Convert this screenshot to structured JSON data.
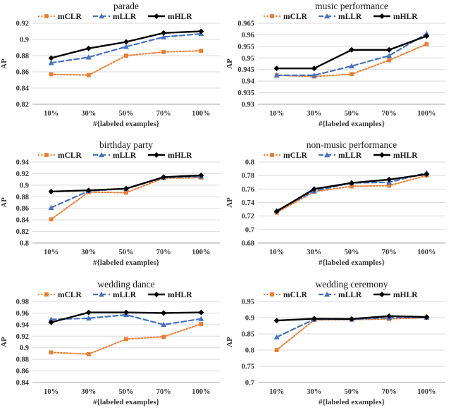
{
  "figure": {
    "x_axis_label": "#{labeled examples}",
    "y_axis_label": "AP",
    "categories": [
      "10%",
      "30%",
      "50%",
      "70%",
      "100%"
    ],
    "legend_labels": [
      "mCLR",
      "mLLR",
      "mHLR"
    ]
  },
  "style": {
    "background": "#ffffff",
    "grid_color": "#d9d9d9",
    "axis_color": "#a6a6a6",
    "tick_text_color": "#333333",
    "title_color": "#1a1a1a"
  },
  "series_styles": {
    "mCLR": {
      "color": "#ED7D31",
      "dash": "2 2.4",
      "width": 2,
      "marker": "square",
      "marker_size": 7
    },
    "mLLR": {
      "color": "#4472C4",
      "dash": "7 4",
      "width": 2.2,
      "marker": "triangle",
      "marker_size": 8
    },
    "mHLR": {
      "color": "#000000",
      "dash": "",
      "width": 2.4,
      "marker": "diamond",
      "marker_size": 8
    }
  },
  "chart_data": [
    {
      "type": "line",
      "title": "parade",
      "xlabel": "#{labeled examples}",
      "ylabel": "AP",
      "categories": [
        "10%",
        "30%",
        "50%",
        "70%",
        "100%"
      ],
      "ylim": [
        0.82,
        0.92
      ],
      "ytick_labels": [
        "0.82",
        "0.84",
        "0.86",
        "0.88",
        "0.9",
        "0.92"
      ],
      "legend_position": "top",
      "grid": true,
      "series": [
        {
          "name": "mCLR",
          "values": [
            0.857,
            0.856,
            0.88,
            0.8845,
            0.886
          ]
        },
        {
          "name": "mLLR",
          "values": [
            0.871,
            0.878,
            0.891,
            0.903,
            0.907
          ]
        },
        {
          "name": "mHLR",
          "values": [
            0.877,
            0.889,
            0.897,
            0.908,
            0.91
          ]
        }
      ]
    },
    {
      "type": "line",
      "title": "music performance",
      "xlabel": "#{labeled examples}",
      "ylabel": "AP",
      "categories": [
        "10%",
        "30%",
        "50%",
        "70%",
        "100%"
      ],
      "ylim": [
        0.93,
        0.965
      ],
      "ytick_labels": [
        "0.93",
        "0.935",
        "0.94",
        "0.945",
        "0.95",
        "0.955",
        "0.96",
        "0.965"
      ],
      "legend_position": "top",
      "grid": true,
      "series": [
        {
          "name": "mCLR",
          "values": [
            0.9425,
            0.942,
            0.943,
            0.949,
            0.956
          ]
        },
        {
          "name": "mLLR",
          "values": [
            0.9425,
            0.9425,
            0.9465,
            0.951,
            0.9605
          ]
        },
        {
          "name": "mHLR",
          "values": [
            0.9455,
            0.9455,
            0.9535,
            0.9535,
            0.9595
          ]
        }
      ]
    },
    {
      "type": "line",
      "title": "birthday party",
      "xlabel": "#{labeled examples}",
      "ylabel": "AP",
      "categories": [
        "10%",
        "30%",
        "50%",
        "70%",
        "100%"
      ],
      "ylim": [
        0.8,
        0.94
      ],
      "ytick_labels": [
        "0.8",
        "0.82",
        "0.84",
        "0.86",
        "0.88",
        "0.9",
        "0.92",
        "0.94"
      ],
      "legend_position": "top",
      "grid": true,
      "series": [
        {
          "name": "mCLR",
          "values": [
            0.841,
            0.888,
            0.887,
            0.912,
            0.913
          ]
        },
        {
          "name": "mLLR",
          "values": [
            0.861,
            0.89,
            0.894,
            0.913,
            0.915
          ]
        },
        {
          "name": "mHLR",
          "values": [
            0.889,
            0.891,
            0.894,
            0.914,
            0.917
          ]
        }
      ]
    },
    {
      "type": "line",
      "title": "non-music performance",
      "xlabel": "#{labeled examples}",
      "ylabel": "AP",
      "categories": [
        "10%",
        "30%",
        "50%",
        "70%",
        "100%"
      ],
      "ylim": [
        0.68,
        0.8
      ],
      "ytick_labels": [
        "0.68",
        "0.7",
        "0.72",
        "0.74",
        "0.76",
        "0.78",
        "0.8"
      ],
      "legend_position": "top",
      "grid": true,
      "series": [
        {
          "name": "mCLR",
          "values": [
            0.725,
            0.756,
            0.764,
            0.765,
            0.78
          ]
        },
        {
          "name": "mLLR",
          "values": [
            0.728,
            0.757,
            0.769,
            0.77,
            0.784
          ]
        },
        {
          "name": "mHLR",
          "values": [
            0.727,
            0.76,
            0.769,
            0.774,
            0.782
          ]
        }
      ]
    },
    {
      "type": "line",
      "title": "wedding dance",
      "xlabel": "#{labeled examples}",
      "ylabel": "AP",
      "categories": [
        "10%",
        "30%",
        "50%",
        "70%",
        "100%"
      ],
      "ylim": [
        0.84,
        0.98
      ],
      "ytick_labels": [
        "0.84",
        "0.86",
        "0.88",
        "0.9",
        "0.92",
        "0.94",
        "0.96",
        "0.98"
      ],
      "legend_position": "top",
      "grid": true,
      "series": [
        {
          "name": "mCLR",
          "values": [
            0.892,
            0.889,
            0.915,
            0.919,
            0.941
          ]
        },
        {
          "name": "mLLR",
          "values": [
            0.949,
            0.951,
            0.957,
            0.94,
            0.95
          ]
        },
        {
          "name": "mHLR",
          "values": [
            0.944,
            0.961,
            0.961,
            0.96,
            0.961
          ]
        }
      ]
    },
    {
      "type": "line",
      "title": "wedding ceremony",
      "xlabel": "#{labeled examples}",
      "ylabel": "AP",
      "categories": [
        "10%",
        "30%",
        "50%",
        "70%",
        "100%"
      ],
      "ylim": [
        0.7,
        0.95
      ],
      "ytick_labels": [
        "0.7",
        "0.75",
        "0.8",
        "0.85",
        "0.9",
        "0.95"
      ],
      "legend_position": "top",
      "grid": true,
      "series": [
        {
          "name": "mCLR",
          "values": [
            0.8,
            0.893,
            0.894,
            0.896,
            0.9
          ]
        },
        {
          "name": "mLLR",
          "values": [
            0.84,
            0.895,
            0.895,
            0.9,
            0.901
          ]
        },
        {
          "name": "mHLR",
          "values": [
            0.891,
            0.897,
            0.896,
            0.905,
            0.902
          ]
        }
      ]
    }
  ]
}
